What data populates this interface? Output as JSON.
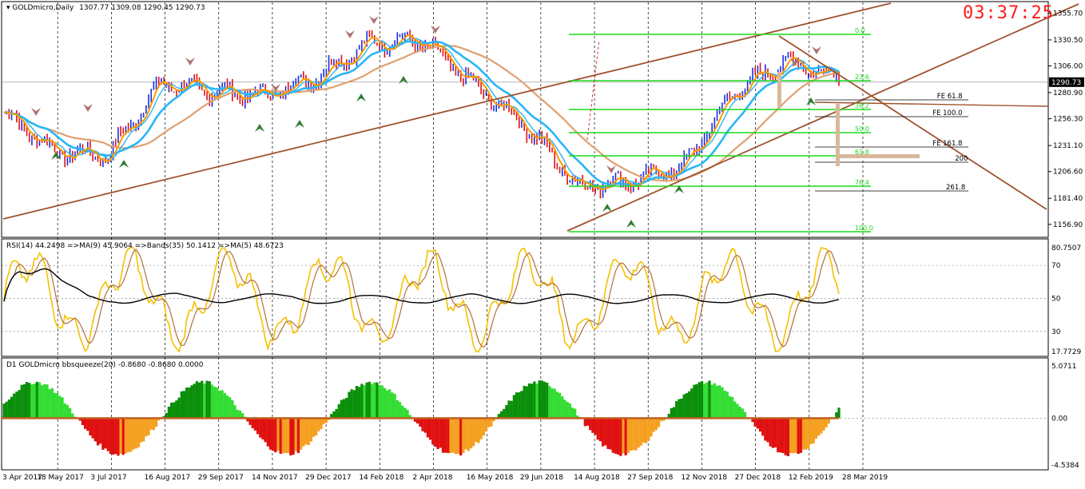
{
  "window": {
    "symbol_label": "GOLDmicro,Daily",
    "ohlc_label": "1307.77 1309.08 1290.45 1290.73",
    "clock": "03:37:25"
  },
  "main_pane": {
    "price_scale": [
      "1355.70",
      "1330.50",
      "1306.00",
      "1280.90",
      "1256.30",
      "1231.10",
      "1206.60",
      "1181.40",
      "1156.90"
    ],
    "current_price": "1290.73",
    "fibo_levels": [
      "0.0",
      "23.6",
      "38.2",
      "50.0",
      "61.8",
      "76.4",
      "100.0"
    ],
    "fe_levels": [
      "FE 61.8",
      "FE 100.0",
      "FE 161.8",
      "200",
      "261.8"
    ]
  },
  "rsi_pane": {
    "header": "RSI(14) 44.2498  =>MA(9) 45.9064  =>Bands(35) 50.1412  =>MA(5) 48.6723",
    "scale": [
      "80.7507",
      "70",
      "50",
      "30",
      "17.7729"
    ]
  },
  "squeeze_pane": {
    "header": "D1 GOLDmicro bbsqueeze(20) -0.8680 -0.8680 0.0000",
    "scale": [
      "5.0711",
      "0.00",
      "-4.5384"
    ]
  },
  "time_axis": [
    "3 Apr 2017",
    "18 May 2017",
    "3 Jul 2017",
    "16 Aug 2017",
    "29 Sep 2017",
    "14 Nov 2017",
    "29 Dec 2017",
    "14 Feb 2018",
    "2 Apr 2018",
    "16 May 2018",
    "29 Jun 2018",
    "14 Aug 2018",
    "27 Sep 2018",
    "12 Nov 2018",
    "27 Dec 2018",
    "12 Feb 2019",
    "28 Mar 2019"
  ],
  "colors": {
    "bull_bar": "#1a2fe0",
    "bear_bar": "#e01010",
    "fast_ma": "#ff9900",
    "mid_ma": "#29b6f6",
    "slow_ma": "#e0a070",
    "trendline": "#a0522d",
    "fibo": "#1adc1a",
    "clock": "#ff1a1a"
  },
  "chart_data": {
    "type": "candlestick",
    "instrument": "GOLDmicro",
    "timeframe": "Daily",
    "last_ohlc": {
      "open": 1307.77,
      "high": 1309.08,
      "low": 1290.45,
      "close": 1290.73
    },
    "x": [
      "3 Apr 2017",
      "18 May 2017",
      "3 Jul 2017",
      "16 Aug 2017",
      "29 Sep 2017",
      "14 Nov 2017",
      "29 Dec 2017",
      "14 Feb 2018",
      "2 Apr 2018",
      "16 May 2018",
      "29 Jun 2018",
      "14 Aug 2018",
      "27 Sep 2018",
      "12 Nov 2018",
      "27 Dec 2018",
      "12 Feb 2019",
      "28 Mar 2019"
    ],
    "close_approx": [
      1262,
      1225,
      1222,
      1290,
      1282,
      1278,
      1296,
      1328,
      1330,
      1288,
      1250,
      1193,
      1198,
      1210,
      1282,
      1310,
      1296
    ],
    "ylim": [
      1150,
      1362
    ],
    "rsi": {
      "period": 14,
      "value": 44.2498,
      "ma9": 45.9064,
      "bands35": 50.1412,
      "ma5": 48.6723,
      "ylim": [
        17.7729,
        80.7507
      ],
      "levels": [
        30,
        50,
        70
      ]
    },
    "bbsqueeze": {
      "period": 20,
      "value": -0.868,
      "value2": -0.868,
      "value3": 0.0,
      "ylim": [
        -4.5384,
        5.0711
      ]
    }
  }
}
